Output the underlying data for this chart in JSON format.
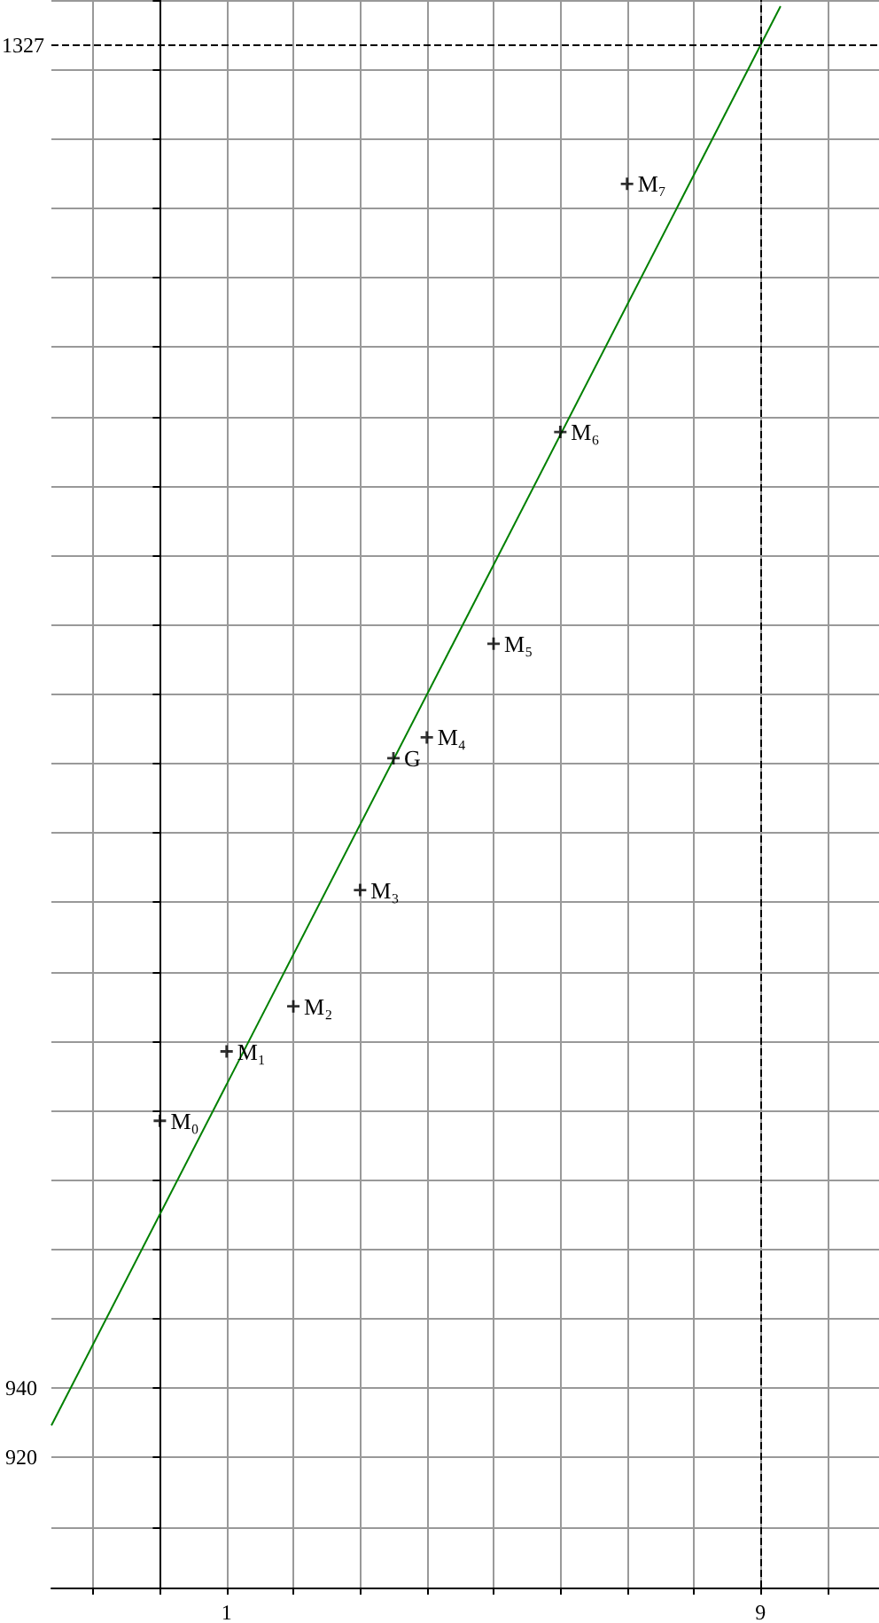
{
  "chart_data": {
    "type": "scatter",
    "marker": "cross",
    "grid": true,
    "xlim": [
      -1.625,
      10.775
    ],
    "ylim": [
      882.5,
      1340
    ],
    "xticks": [
      {
        "value": -1,
        "label": null
      },
      {
        "value": 0,
        "label": null
      },
      1,
      {
        "value": 2,
        "label": null
      },
      {
        "value": 3,
        "label": null
      },
      {
        "value": 4,
        "label": null
      },
      {
        "value": 5,
        "label": null
      },
      {
        "value": 6,
        "label": null
      },
      {
        "value": 7,
        "label": null
      },
      {
        "value": 8,
        "label": null
      },
      9,
      {
        "value": 10,
        "label": null
      }
    ],
    "yticks": [
      {
        "value": 900,
        "label": null
      },
      920,
      940,
      {
        "value": 960,
        "label": null
      },
      {
        "value": 980,
        "label": null
      },
      {
        "value": 1000,
        "label": null
      },
      {
        "value": 1020,
        "label": null
      },
      {
        "value": 1040,
        "label": null
      },
      {
        "value": 1060,
        "label": null
      },
      {
        "value": 1080,
        "label": null
      },
      {
        "value": 1100,
        "label": null
      },
      {
        "value": 1120,
        "label": null
      },
      {
        "value": 1140,
        "label": null
      },
      {
        "value": 1160,
        "label": null
      },
      {
        "value": 1180,
        "label": null
      },
      {
        "value": 1200,
        "label": null
      },
      {
        "value": 1220,
        "label": null
      },
      {
        "value": 1240,
        "label": null
      },
      {
        "value": 1260,
        "label": null
      },
      {
        "value": 1280,
        "label": null
      },
      {
        "value": 1300,
        "label": null
      },
      {
        "value": 1320,
        "label": null
      },
      {
        "value": 1340,
        "label": null
      }
    ],
    "series": [
      {
        "color": "#000000",
        "x": [
          0,
          1,
          2,
          3,
          4,
          5,
          6,
          7
        ],
        "values": [
          1017,
          1037,
          1050,
          1083.5,
          1127.5,
          1154.5,
          1215.5,
          1287
        ]
      },
      {
        "color": "#000000",
        "x": [
          3.5
        ],
        "values": [
          1121.5
        ]
      },
      {
        "type": "line",
        "marker": "none",
        "color": "#008000",
        "x": [
          -1.625,
          9.3
        ],
        "values": [
          929.2,
          1338.2
        ]
      }
    ],
    "ref_lines": [
      {
        "axis": "y",
        "value": 1327,
        "label": "1327",
        "line_style": "dashed",
        "color": "#000000"
      },
      {
        "axis": "x",
        "value": 9,
        "line_style": "dashed",
        "color": "#000000"
      }
    ],
    "annotations": [
      {
        "text": "M₀",
        "x": 0,
        "y": 1017
      },
      {
        "text": "M₁",
        "x": 1,
        "y": 1037
      },
      {
        "text": "M₂",
        "x": 2,
        "y": 1050
      },
      {
        "text": "M₃",
        "x": 3,
        "y": 1083.5
      },
      {
        "text": "M₄",
        "x": 4,
        "y": 1127.5
      },
      {
        "text": "M₅",
        "x": 5,
        "y": 1154.5
      },
      {
        "text": "M₆",
        "x": 6,
        "y": 1215.5
      },
      {
        "text": "M₇",
        "x": 7,
        "y": 1287
      },
      {
        "text": "G",
        "x": 3.5,
        "y": 1121.5
      }
    ]
  }
}
